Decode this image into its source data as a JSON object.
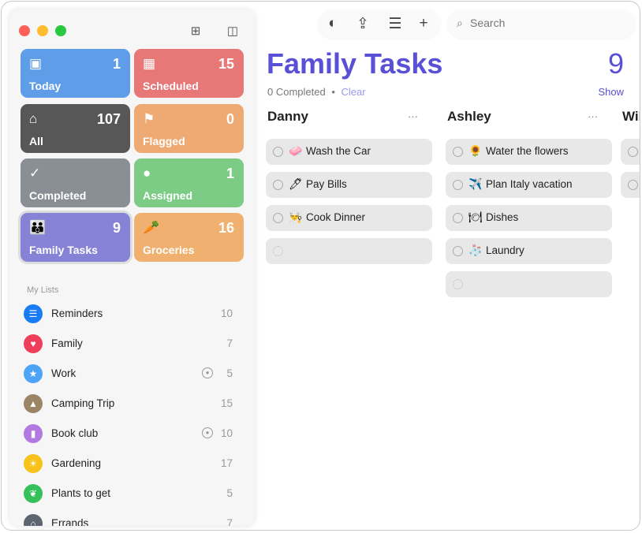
{
  "toolbar": {
    "search_placeholder": "Search"
  },
  "smart_lists": [
    {
      "label": "Today",
      "count": "1",
      "icon": "calendar-today-icon",
      "glyph": "▣",
      "color": "#5f9de8"
    },
    {
      "label": "Scheduled",
      "count": "15",
      "icon": "calendar-icon",
      "glyph": "▦",
      "color": "#e87878"
    },
    {
      "label": "All",
      "count": "107",
      "icon": "tray-icon",
      "glyph": "⌂",
      "color": "#575757"
    },
    {
      "label": "Flagged",
      "count": "0",
      "icon": "flag-icon",
      "glyph": "⚑",
      "color": "#eeaa72"
    },
    {
      "label": "Completed",
      "count": "",
      "icon": "checkmark-icon",
      "glyph": "✓",
      "color": "#8a8f96"
    },
    {
      "label": "Assigned",
      "count": "1",
      "icon": "person-icon",
      "glyph": "●",
      "color": "#7ccc86"
    },
    {
      "label": "Family Tasks",
      "count": "9",
      "icon": "family-icon",
      "glyph": "👪",
      "color": "#8683d6"
    },
    {
      "label": "Groceries",
      "count": "16",
      "icon": "carrot-icon",
      "glyph": "🥕",
      "color": "#f0b070"
    }
  ],
  "my_lists_title": "My Lists",
  "lists": [
    {
      "name": "Reminders",
      "count": "10",
      "color": "#1a7cf5",
      "glyph": "☰",
      "icon": "list-icon",
      "shared": false
    },
    {
      "name": "Family",
      "count": "7",
      "color": "#ee3e5c",
      "glyph": "♥",
      "icon": "heart-icon",
      "shared": false
    },
    {
      "name": "Work",
      "count": "5",
      "color": "#4da3f5",
      "glyph": "★",
      "icon": "star-icon",
      "shared": true
    },
    {
      "name": "Camping Trip",
      "count": "15",
      "color": "#9c8466",
      "glyph": "▲",
      "icon": "tent-icon",
      "shared": false
    },
    {
      "name": "Book club",
      "count": "10",
      "color": "#b27ae0",
      "glyph": "▮",
      "icon": "bookmark-icon",
      "shared": true
    },
    {
      "name": "Gardening",
      "count": "17",
      "color": "#f7c21a",
      "glyph": "☀",
      "icon": "sun-icon",
      "shared": false
    },
    {
      "name": "Plants to get",
      "count": "5",
      "color": "#35c05a",
      "glyph": "❦",
      "icon": "leaf-icon",
      "shared": false
    },
    {
      "name": "Errands",
      "count": "7",
      "color": "#5d6670",
      "glyph": "⌂",
      "icon": "house-icon",
      "shared": false
    }
  ],
  "main": {
    "title": "Family Tasks",
    "count": "9",
    "completed": "0 Completed",
    "bullet": "•",
    "clear": "Clear",
    "show": "Show",
    "columns": [
      {
        "name": "Danny",
        "more": "···",
        "tasks": [
          {
            "emoji": "🧼",
            "text": "Wash the Car"
          },
          {
            "emoji": "🖊",
            "text": "Pay Bills"
          },
          {
            "emoji": "👨‍🍳",
            "text": "Cook Dinner"
          }
        ]
      },
      {
        "name": "Ashley",
        "more": "···",
        "tasks": [
          {
            "emoji": "🌻",
            "text": "Water the flowers"
          },
          {
            "emoji": "✈️",
            "text": "Plan Italy vacation"
          },
          {
            "emoji": "🍽",
            "text": "Dishes"
          },
          {
            "emoji": "🧦",
            "text": "Laundry"
          }
        ]
      },
      {
        "name": "Wil",
        "more": "",
        "tasks": []
      }
    ]
  },
  "colors": {
    "accent": "#5a50d8"
  }
}
